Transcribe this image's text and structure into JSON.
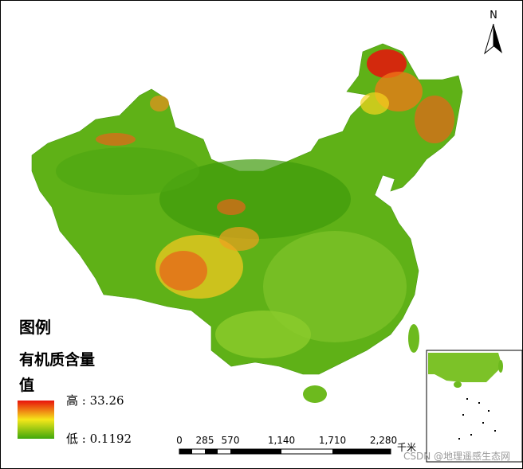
{
  "north_arrow": "N",
  "legend": {
    "title": "图例",
    "field": "有机质含量",
    "subtitle": "值",
    "high": "高 : 33.26",
    "low": "低 : 0.1192"
  },
  "scale_bar": {
    "labels": [
      "0",
      "285",
      "570",
      "1,140",
      "1,710",
      "2,280"
    ],
    "unit": "千米"
  },
  "watermark": "CSDN @地理遥感生态网"
}
